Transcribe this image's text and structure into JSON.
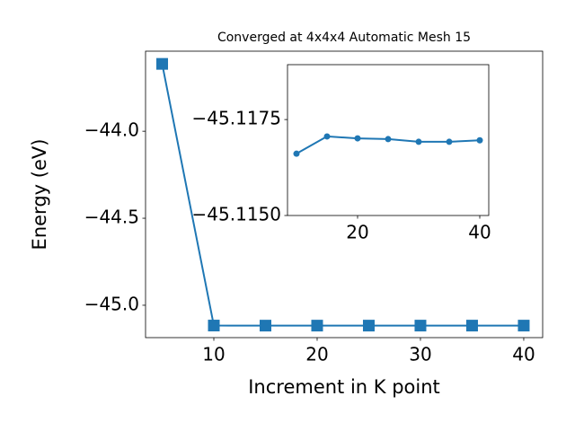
{
  "chart_data": [
    {
      "type": "line",
      "title": "Converged at 4x4x4 Automatic Mesh 15",
      "xlabel": "Increment in K point",
      "ylabel": "Energy (eV)",
      "x": [
        5,
        10,
        15,
        20,
        25,
        30,
        35,
        40
      ],
      "series": [
        {
          "color": "#1f77b4",
          "marker": "square",
          "values": [
            -43.613,
            -45.11661,
            -45.11706,
            -45.11701,
            -45.11699,
            -45.11692,
            -45.11692,
            -45.11696
          ]
        }
      ],
      "xlim": [
        3.39,
        41.83
      ],
      "ylim": [
        -45.186,
        -43.54
      ],
      "xticks": [
        10,
        20,
        30,
        40
      ],
      "yticks": [
        {
          "value": -44.0,
          "label": "−44.0"
        },
        {
          "value": -44.5,
          "label": "−44.5"
        },
        {
          "value": -45.0,
          "label": "−45.0"
        }
      ]
    },
    {
      "type": "line",
      "x": [
        10,
        15,
        20,
        25,
        30,
        35,
        40
      ],
      "series": [
        {
          "color": "#1f77b4",
          "marker": "circle",
          "values": [
            -45.11661,
            -45.11706,
            -45.11701,
            -45.11699,
            -45.11692,
            -45.11692,
            -45.11696
          ]
        }
      ],
      "xlim": [
        8.53,
        41.47
      ],
      "ylim": [
        -45.115,
        -45.11893
      ],
      "xticks": [
        20,
        40
      ],
      "yticks": [
        {
          "value": -45.1175,
          "label": "−45.1175"
        },
        {
          "value": -45.115,
          "label": "−45.1150"
        }
      ]
    }
  ]
}
